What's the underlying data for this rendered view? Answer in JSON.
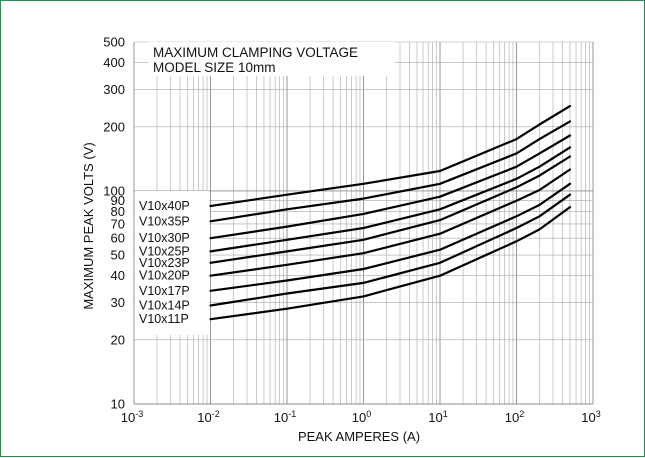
{
  "chart_data": {
    "type": "line",
    "title": "MAXIMUM CLAMPING VOLTAGE",
    "subtitle": "MODEL SIZE 10mm",
    "xlabel": "PEAK AMPERES (A)",
    "ylabel": "MAXIMUM PEAK VOLTS (V)",
    "xscale": "log",
    "yscale": "log",
    "xlim": [
      0.001,
      1000
    ],
    "ylim": [
      10,
      500
    ],
    "grid": true,
    "x_ticks": [
      {
        "base": "10",
        "exp": "-3"
      },
      {
        "base": "10",
        "exp": "-2"
      },
      {
        "base": "10",
        "exp": "-1"
      },
      {
        "base": "10",
        "exp": "0"
      },
      {
        "base": "10",
        "exp": "1"
      },
      {
        "base": "10",
        "exp": "2"
      },
      {
        "base": "10",
        "exp": "3"
      }
    ],
    "y_ticks": [
      "10",
      "20",
      "30",
      "40",
      "50",
      "60",
      "70",
      "80",
      "90",
      "100",
      "200",
      "300",
      "400",
      "500"
    ],
    "x": [
      0.01,
      0.1,
      1,
      10,
      100,
      200,
      500
    ],
    "series": [
      {
        "name": "V10x40P",
        "values": [
          85,
          96,
          108,
          124,
          175,
          205,
          250
        ]
      },
      {
        "name": "V10x35P",
        "values": [
          72,
          82,
          92,
          108,
          150,
          175,
          212
        ]
      },
      {
        "name": "V10x30P",
        "values": [
          60,
          68,
          78,
          94,
          130,
          150,
          182
        ]
      },
      {
        "name": "V10x25P",
        "values": [
          52,
          59,
          67,
          82,
          114,
          130,
          160
        ]
      },
      {
        "name": "V10x23P",
        "values": [
          46,
          52,
          59,
          73,
          104,
          118,
          145
        ]
      },
      {
        "name": "V10x20P",
        "values": [
          40,
          45,
          51,
          63,
          90,
          101,
          126
        ]
      },
      {
        "name": "V10x17P",
        "values": [
          34,
          38,
          43,
          53,
          76,
          86,
          108
        ]
      },
      {
        "name": "V10x14P",
        "values": [
          29,
          33,
          37,
          46,
          67,
          76,
          96
        ]
      },
      {
        "name": "V10x11P",
        "values": [
          25,
          28,
          32,
          40,
          58,
          66,
          84
        ]
      }
    ]
  }
}
